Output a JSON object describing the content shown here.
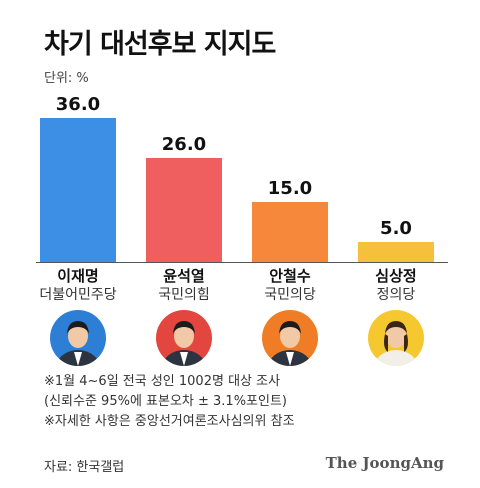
{
  "title": "차기 대선후보 지지도",
  "unit_label": "단위: %",
  "chart_data": {
    "type": "bar",
    "title": "차기 대선후보 지지도",
    "unit": "%",
    "ylim": [
      0,
      40
    ],
    "grid": false,
    "categories": [
      "이재명",
      "윤석열",
      "안철수",
      "심상정"
    ],
    "values": [
      36.0,
      26.0,
      15.0,
      5.0
    ],
    "value_labels": [
      "36.0",
      "26.0",
      "15.0",
      "5.0"
    ],
    "parties": [
      "더불어민주당",
      "국민의힘",
      "국민의당",
      "정의당"
    ],
    "colors": [
      "#3d8fe6",
      "#f05f5f",
      "#f5883a",
      "#f5c13b"
    ]
  },
  "avatars": [
    {
      "name": "portrait-lee",
      "background": "#2d7fd6"
    },
    {
      "name": "portrait-yoon",
      "background": "#e2463f"
    },
    {
      "name": "portrait-ahn",
      "background": "#f07d25"
    },
    {
      "name": "portrait-sim",
      "background": "#f6c82f"
    }
  ],
  "notes": [
    "※1월 4~6일 전국 성인 1002명 대상 조사",
    "(신뢰수준 95%에 표본오차 ± 3.1%포인트)",
    "※자세한 사항은 중앙선거여론조사심의위 참조"
  ],
  "source": "자료: 한국갤럽",
  "brand": "The JoongAng"
}
